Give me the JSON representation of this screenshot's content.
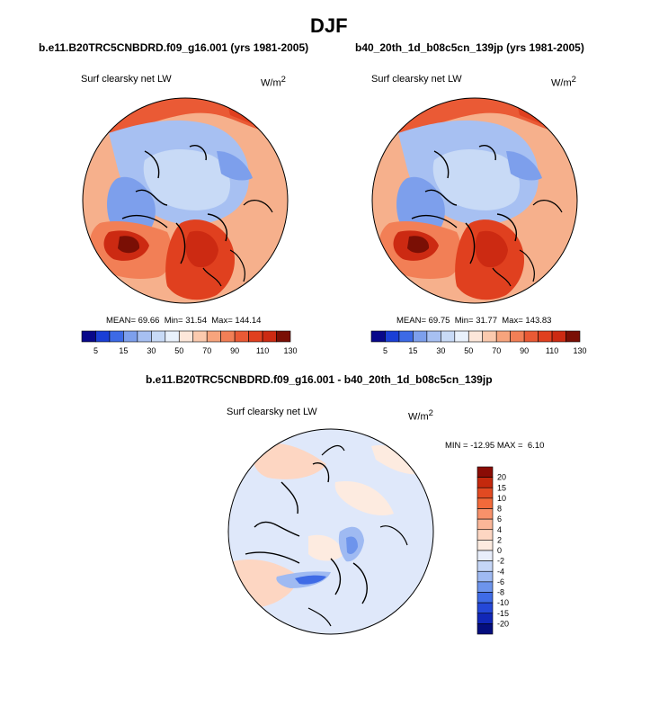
{
  "page_title": "DJF",
  "panels": [
    {
      "case": "b.e11.B20TRC5CNBDRD.f09_g16.001 (yrs 1981-2005)",
      "variable": "Surf clearsky net LW",
      "units_base": "W/m",
      "units_exp": "2",
      "stats": {
        "mean_label": "MEAN=",
        "mean": "69.66",
        "min_label": "Min=",
        "min": "31.54",
        "max_label": "Max=",
        "max": "144.14"
      },
      "map_icon": "north-polar-stereographic-map"
    },
    {
      "case": "b40_20th_1d_b08c5cn_139jp (yrs 1981-2005)",
      "variable": "Surf clearsky net LW",
      "units_base": "W/m",
      "units_exp": "2",
      "stats": {
        "mean_label": "MEAN=",
        "mean": "69.75",
        "min_label": "Min=",
        "min": "31.77",
        "max_label": "Max=",
        "max": "143.83"
      },
      "map_icon": "north-polar-stereographic-map"
    }
  ],
  "diff": {
    "title": "b.e11.B20TRC5CNBDRD.f09_g16.001 - b40_20th_1d_b08c5cn_139jp",
    "variable": "Surf clearsky net LW",
    "units_base": "W/m",
    "units_exp": "2",
    "minmax": {
      "min_label": "MIN =",
      "min": "-12.95",
      "max_label": "MAX =",
      "max": "6.10"
    },
    "map_icon": "north-polar-stereographic-map"
  },
  "chart_data": [
    {
      "type": "heatmap",
      "title": "b.e11.B20TRC5CNBDRD.f09_g16.001 (yrs 1981-2005)",
      "projection": "north-polar-stereographic",
      "colorbar": {
        "orientation": "horizontal",
        "levels": [
          5,
          15,
          30,
          50,
          70,
          90,
          110,
          130
        ],
        "colors": [
          "#08088a",
          "#1a3fd6",
          "#3d6ae6",
          "#7d9fec",
          "#a7c0f2",
          "#c8daf6",
          "#e9f1fb",
          "#fde7da",
          "#fbcaae",
          "#f7a47d",
          "#f27f56",
          "#ea5a35",
          "#e0401f",
          "#cc2a12",
          "#7a0f05"
        ]
      },
      "stats": {
        "mean": 69.66,
        "min": 31.54,
        "max": 144.14
      }
    },
    {
      "type": "heatmap",
      "title": "b40_20th_1d_b08c5cn_139jp (yrs 1981-2005)",
      "projection": "north-polar-stereographic",
      "colorbar": {
        "orientation": "horizontal",
        "levels": [
          5,
          15,
          30,
          50,
          70,
          90,
          110,
          130
        ],
        "colors": [
          "#08088a",
          "#1a3fd6",
          "#3d6ae6",
          "#7d9fec",
          "#a7c0f2",
          "#c8daf6",
          "#e9f1fb",
          "#fde7da",
          "#fbcaae",
          "#f7a47d",
          "#f27f56",
          "#ea5a35",
          "#e0401f",
          "#cc2a12",
          "#7a0f05"
        ]
      },
      "stats": {
        "mean": 69.75,
        "min": 31.77,
        "max": 143.83
      }
    },
    {
      "type": "heatmap",
      "title": "b.e11.B20TRC5CNBDRD.f09_g16.001 - b40_20th_1d_b08c5cn_139jp",
      "projection": "north-polar-stereographic",
      "colorbar": {
        "orientation": "vertical",
        "levels": [
          "20",
          "15",
          "10",
          "8",
          "6",
          "4",
          "2",
          "0",
          "-2",
          "-4",
          "-6",
          "-8",
          "-10",
          "-15",
          "-20"
        ],
        "colors": [
          "#8a0c05",
          "#c4290d",
          "#e24a22",
          "#f36a3a",
          "#f8916a",
          "#fbb698",
          "#fdd6c2",
          "#fdebe0",
          "#e8eefb",
          "#c5d6f7",
          "#9fbaf2",
          "#6d94ec",
          "#3f6be6",
          "#2548d8",
          "#1127b8",
          "#050e7e"
        ]
      },
      "stats": {
        "min": -12.95,
        "max": 6.1
      }
    }
  ]
}
